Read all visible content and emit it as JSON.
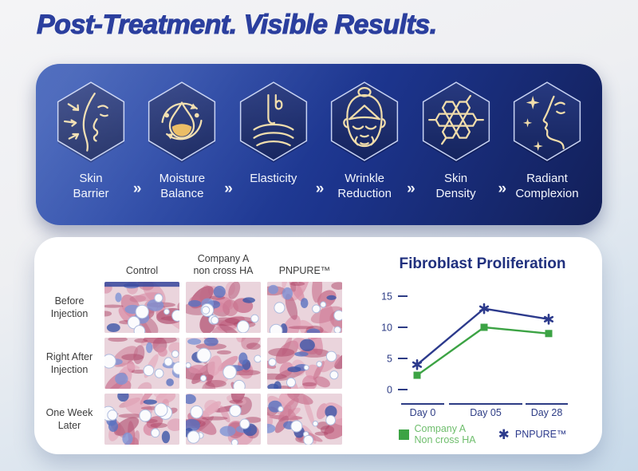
{
  "page_title": "Post-Treatment. Visible Results.",
  "colors": {
    "title_blue": "#2b3f9e",
    "banner_blue_light": "#3356b5",
    "banner_blue_dark": "#121f58",
    "hexagon_stroke": "#c7d2f2",
    "icon_gold": "#f1ddab",
    "icon_gold_fill": "#eab95c",
    "label_white": "#f3f6fd",
    "navy": "#2c3a8c",
    "green": "#3ca344",
    "axis_navy": "#2d3c85",
    "grid_text_gray": "#3c3c3c"
  },
  "banner": {
    "separator": "»",
    "items": [
      {
        "label": "Skin\nBarrier",
        "icon": "skin-barrier-icon"
      },
      {
        "label": "Moisture\nBalance",
        "icon": "moisture-balance-icon"
      },
      {
        "label": "Elasticity",
        "icon": "elasticity-icon"
      },
      {
        "label": "Wrinkle\nReduction",
        "icon": "wrinkle-reduction-icon"
      },
      {
        "label": "Skin\nDensity",
        "icon": "skin-density-icon"
      },
      {
        "label": "Radiant\nComplexion",
        "icon": "radiant-complexion-icon"
      }
    ]
  },
  "panel": {
    "columns": [
      "Control",
      "Company A\nnon cross HA",
      "PNPURE™"
    ],
    "rows": [
      "Before\nInjection",
      "Right After\nInjection",
      "One Week\nLater"
    ]
  },
  "chart_data": {
    "type": "line",
    "title": "Fibroblast Proliferation",
    "categories": [
      "Day 0",
      "Day 05",
      "Day 28"
    ],
    "series": [
      {
        "name": "Company A\nNon cross HA",
        "values": [
          2.3,
          10,
          9
        ],
        "color": "#3ca344",
        "legend_text_color": "#6fbe6d",
        "marker": "square"
      },
      {
        "name": "PNPURE™",
        "values": [
          4,
          13,
          11.3
        ],
        "color": "#2c3a8c",
        "legend_text_color": "#2c3a8c",
        "marker": "asterisk"
      }
    ],
    "yticks": [
      0,
      5,
      10,
      15
    ],
    "ylim": [
      0,
      16
    ],
    "xlabel": "",
    "ylabel": "",
    "grid": false,
    "legend_position": "bottom"
  }
}
